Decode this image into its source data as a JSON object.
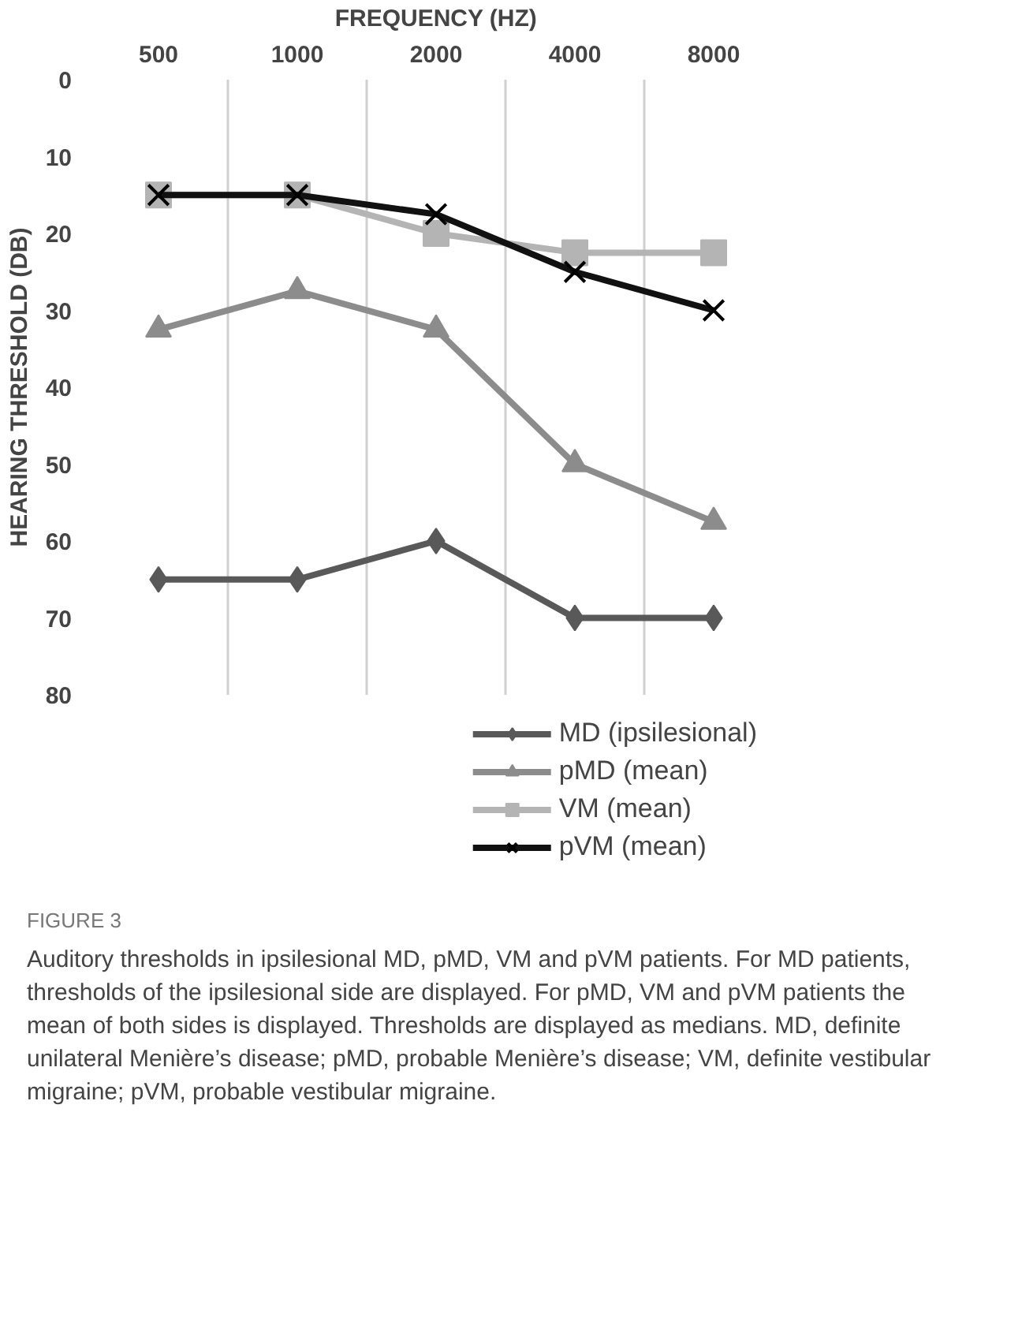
{
  "chart_data": {
    "type": "line",
    "xlabel": "FREQUENCY (HZ)",
    "ylabel": "HEARING THRESHOLD (DB)",
    "categories": [
      "500",
      "1000",
      "2000",
      "4000",
      "8000"
    ],
    "ylim": [
      80,
      0
    ],
    "yticks": [
      0,
      10,
      20,
      30,
      40,
      50,
      60,
      70,
      80
    ],
    "grid": "x",
    "legend": "bottom right",
    "series": [
      {
        "name": "MD (ipsilesional)",
        "color": "#595959",
        "marker": "diamond",
        "values": [
          65,
          65,
          60,
          70,
          70
        ]
      },
      {
        "name": "pMD (mean)",
        "color": "#8c8c8c",
        "marker": "triangle",
        "values": [
          32.5,
          27.5,
          32.5,
          50,
          57.5
        ]
      },
      {
        "name": "VM (mean)",
        "color": "#b4b4b4",
        "marker": "square",
        "values": [
          15,
          15,
          20,
          22.5,
          22.5
        ]
      },
      {
        "name": "pVM (mean)",
        "color": "#111111",
        "marker": "cross",
        "values": [
          15,
          15,
          17.5,
          25,
          30
        ]
      }
    ],
    "annotations": [
      "FIGURE 3",
      "Auditory thresholds in ipsilesional MD, pMD, VM and pVM patients. For MD patients, thresholds of the ipsilesional side are displayed. For pMD, VM and pVM patients the mean of both sides is displayed. Thresholds are displayed as medians. MD, definite unilateral Menière’s disease; pMD, probable Menière’s disease; VM, definite vestibular migraine; pVM, probable vestibular migraine."
    ]
  }
}
